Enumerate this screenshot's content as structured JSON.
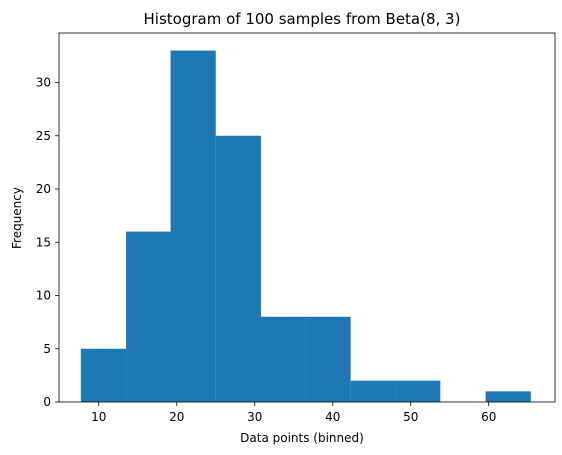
{
  "chart_data": {
    "type": "histogram",
    "title": "Histogram of 100 samples from Beta(8, 3)",
    "xlabel": "Data points (binned)",
    "ylabel": "Frequency",
    "xlim": [
      4.9,
      68.5
    ],
    "ylim": [
      0,
      34.65
    ],
    "bin_edges": [
      7.7,
      13.5,
      19.2,
      25.0,
      30.8,
      36.5,
      42.3,
      48.1,
      53.8,
      59.6,
      65.4
    ],
    "counts": [
      5,
      16,
      33,
      25,
      8,
      8,
      2,
      2,
      0,
      1
    ],
    "x_ticks": [
      10,
      20,
      30,
      40,
      50,
      60
    ],
    "y_ticks": [
      0,
      5,
      10,
      15,
      20,
      25,
      30
    ],
    "bar_color": "#1f77b4",
    "grid": false
  }
}
